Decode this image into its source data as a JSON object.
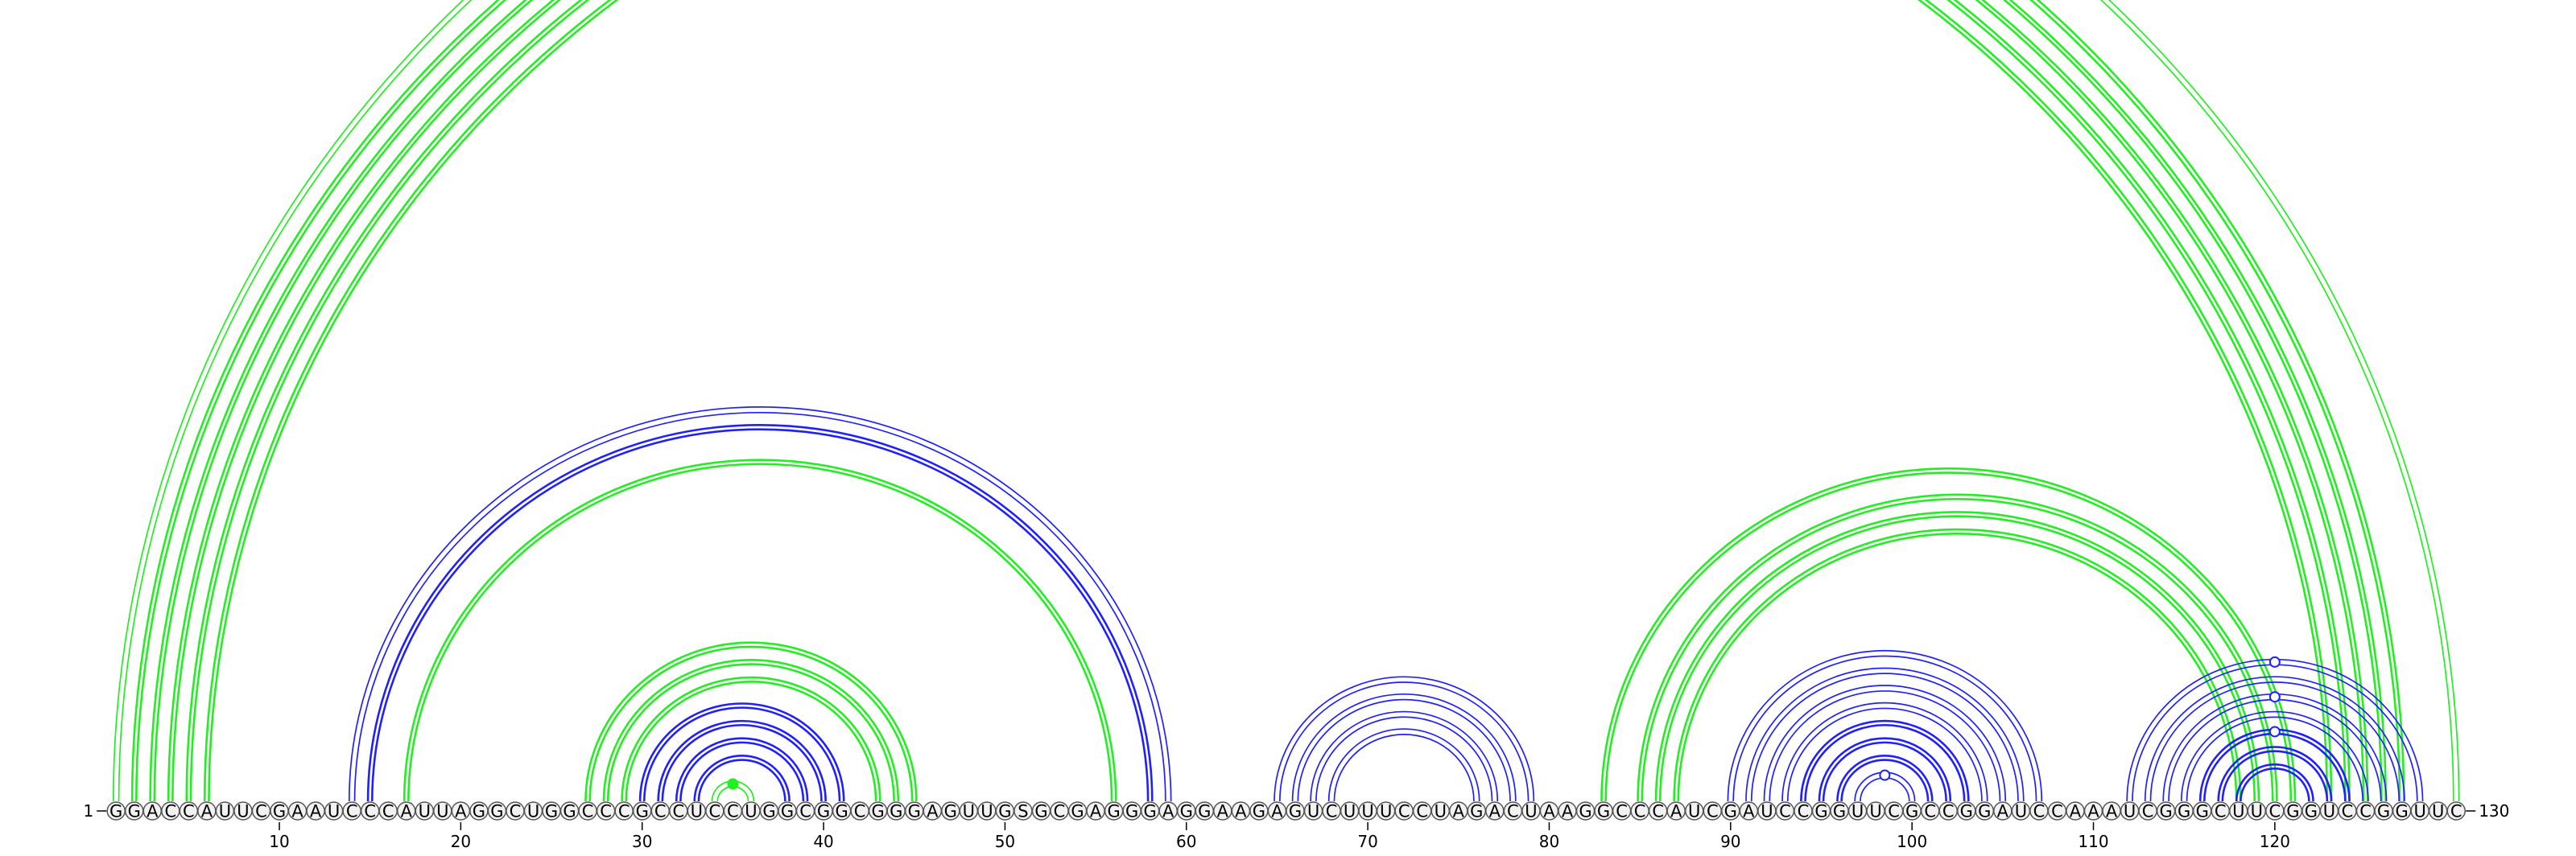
{
  "diagram": {
    "type": "rna-arc-diagram",
    "sequence": "GGACCAUUCGAAUCCCAUUAGGCUGGCCCGCCUCCUGGCGGCGGGAGUUGSGCGAGGGAGGAAGAGUCUUUCCUAGACUAAGGCCCAUCGAUCCGGUUCGCCGGAUCCAAAUCGGGCUUCGGUCCGGUUC",
    "start_label": "1",
    "end_label": "130",
    "tick_labels": [
      "10",
      "20",
      "30",
      "40",
      "50",
      "60",
      "70",
      "80",
      "90",
      "100",
      "110",
      "120"
    ],
    "colors": {
      "helix_green": "#22ee22",
      "helix_blue": "#2020ff",
      "circle_fill": "#f2f2f2",
      "circle_stroke": "#555555"
    },
    "helices": [
      {
        "color": "green",
        "pairs": [
          [
            1,
            130,
            "thin"
          ],
          [
            2,
            127,
            "thick"
          ],
          [
            3,
            126,
            "thick"
          ],
          [
            4,
            125,
            "thick"
          ],
          [
            5,
            124,
            "thick"
          ],
          [
            6,
            123,
            "thick"
          ]
        ]
      },
      {
        "color": "blue",
        "pairs": [
          [
            14,
            59,
            "thin"
          ],
          [
            15,
            58,
            "thick"
          ]
        ]
      },
      {
        "color": "green",
        "pairs": [
          [
            17,
            56,
            "thick"
          ]
        ]
      },
      {
        "color": "green",
        "pairs": [
          [
            27,
            45,
            "thick"
          ],
          [
            28,
            44,
            "thick"
          ],
          [
            29,
            43,
            "thick"
          ]
        ]
      },
      {
        "color": "blue",
        "pairs": [
          [
            30,
            41,
            "thick"
          ],
          [
            31,
            40,
            "thick"
          ],
          [
            32,
            39,
            "thick"
          ],
          [
            33,
            38,
            "thick"
          ]
        ]
      },
      {
        "color": "green",
        "pairs": [
          [
            34,
            36,
            "thin"
          ]
        ]
      },
      {
        "color": "blue",
        "pairs": [
          [
            65,
            79,
            "thin"
          ],
          [
            66,
            78,
            "thin"
          ],
          [
            67,
            77,
            "thin"
          ],
          [
            68,
            76,
            "thin"
          ]
        ]
      },
      {
        "color": "green",
        "pairs": [
          [
            83,
            121,
            "thick"
          ],
          [
            85,
            120,
            "thick"
          ],
          [
            86,
            119,
            "thick"
          ],
          [
            87,
            118,
            "thick"
          ]
        ]
      },
      {
        "color": "blue",
        "pairs": [
          [
            90,
            107,
            "thin"
          ],
          [
            91,
            106,
            "thin"
          ],
          [
            92,
            105,
            "thin"
          ],
          [
            93,
            104,
            "thin"
          ],
          [
            94,
            103,
            "thick"
          ],
          [
            95,
            102,
            "thick"
          ],
          [
            96,
            101,
            "thick"
          ],
          [
            97,
            100,
            "thin"
          ]
        ]
      },
      {
        "color": "blue",
        "pairs": [
          [
            112,
            128,
            "thin"
          ],
          [
            113,
            127,
            "thin"
          ],
          [
            114,
            126,
            "thin"
          ],
          [
            115,
            125,
            "thin"
          ],
          [
            116,
            124,
            "thick"
          ],
          [
            117,
            123,
            "thick"
          ],
          [
            118,
            122,
            "thick"
          ]
        ]
      }
    ],
    "markers": [
      {
        "type": "open",
        "color": "green",
        "pair": [
          1,
          130
        ]
      },
      {
        "type": "filled",
        "color": "green",
        "pair": [
          34,
          36
        ]
      },
      {
        "type": "open",
        "color": "blue",
        "pair": [
          97,
          100
        ]
      },
      {
        "type": "open",
        "color": "blue",
        "pair": [
          112,
          128
        ]
      },
      {
        "type": "open",
        "color": "blue",
        "pair": [
          114,
          126
        ]
      },
      {
        "type": "open",
        "color": "blue",
        "pair": [
          116,
          124
        ]
      }
    ]
  }
}
